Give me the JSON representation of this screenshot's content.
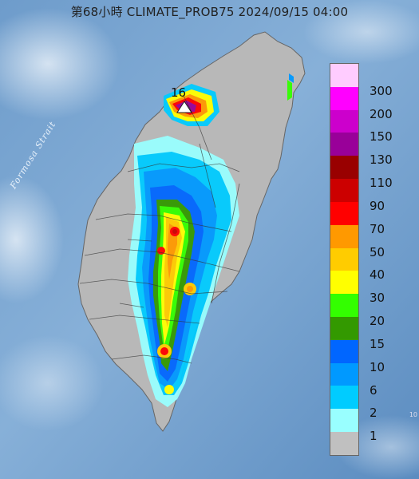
{
  "title": "第68小時  CLIMATE_PROB75 2024/09/15 04:00",
  "sea_label": "Formosa Strait",
  "marker": {
    "label": "16",
    "icon": "triangle-marker-icon"
  },
  "legend": {
    "levels": [
      {
        "label": "300",
        "color": "#ffccff"
      },
      {
        "label": "200",
        "color": "#ff00ff"
      },
      {
        "label": "150",
        "color": "#cc00cc"
      },
      {
        "label": "130",
        "color": "#990099"
      },
      {
        "label": "110",
        "color": "#990000"
      },
      {
        "label": "90",
        "color": "#cc0000"
      },
      {
        "label": "70",
        "color": "#ff0000"
      },
      {
        "label": "50",
        "color": "#ff9900"
      },
      {
        "label": "40",
        "color": "#ffcc00"
      },
      {
        "label": "30",
        "color": "#ffff00"
      },
      {
        "label": "20",
        "color": "#33ff00"
      },
      {
        "label": "15",
        "color": "#339900"
      },
      {
        "label": "10",
        "color": "#0066ff"
      },
      {
        "label": "6",
        "color": "#0099ff"
      },
      {
        "label": "2",
        "color": "#00ccff"
      },
      {
        "label": "1",
        "color": "#99ffff"
      },
      {
        "label": "",
        "color": "#c0c0c0"
      }
    ]
  },
  "corner_text": "10",
  "colors": {
    "sea_dark": "#5f8fbf",
    "sea_light": "#9cc0df",
    "land_gray": "#b8b8b8",
    "river": "#333333"
  }
}
